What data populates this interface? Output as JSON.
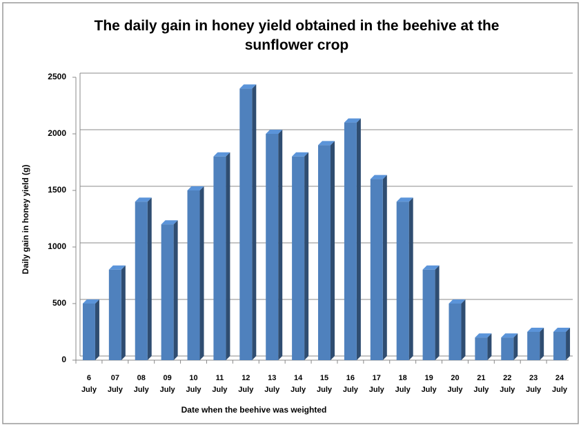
{
  "chart_data": {
    "type": "bar3d",
    "title": "The daily gain in honey yield obtained in the beehive at the sunflower crop",
    "x_label": "Date when the beehive was weighted",
    "y_label": "Daily gain in honey yield (g)",
    "categories": [
      [
        "6",
        "July"
      ],
      [
        "07",
        "July"
      ],
      [
        "08",
        "July"
      ],
      [
        "09",
        "July"
      ],
      [
        "10",
        "July"
      ],
      [
        "11",
        "July"
      ],
      [
        "12",
        "July"
      ],
      [
        "13",
        "July"
      ],
      [
        "14",
        "July"
      ],
      [
        "15",
        "July"
      ],
      [
        "16",
        "July"
      ],
      [
        "17",
        "July"
      ],
      [
        "18",
        "July"
      ],
      [
        "19",
        "July"
      ],
      [
        "20",
        "July"
      ],
      [
        "21",
        "July"
      ],
      [
        "22",
        "July"
      ],
      [
        "23",
        "July"
      ],
      [
        "24",
        "July"
      ]
    ],
    "values": [
      500,
      800,
      1400,
      1200,
      1500,
      1800,
      2400,
      2000,
      1800,
      1900,
      2100,
      1600,
      1400,
      800,
      500,
      200,
      200,
      250,
      250
    ],
    "color": "#4f81bd",
    "ylim": [
      0,
      2500
    ],
    "yticks": [
      0,
      500,
      1000,
      1500,
      2000,
      2500
    ],
    "grid": true
  }
}
